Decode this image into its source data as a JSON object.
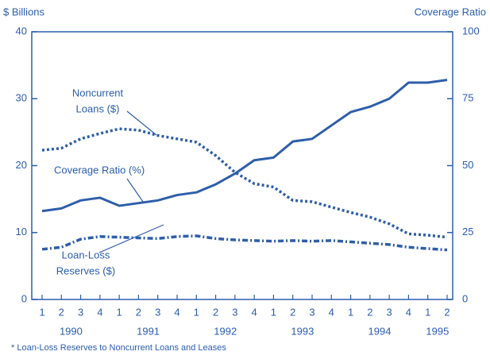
{
  "chart_data": {
    "type": "line",
    "y_axis_label": "$ Billions",
    "y2_axis_label": "Coverage Ratio",
    "footnote": "* Loan-Loss Reserves to Noncurrent Loans and Leases",
    "categories": [
      "1",
      "2",
      "3",
      "4",
      "1",
      "2",
      "3",
      "4",
      "1",
      "2",
      "3",
      "4",
      "1",
      "2",
      "3",
      "4",
      "1",
      "2",
      "3",
      "4",
      "1",
      "2"
    ],
    "years": [
      "1990",
      "1991",
      "1992",
      "1993",
      "1994",
      "1995"
    ],
    "ylim": [
      0,
      40
    ],
    "yticks": [
      0,
      10,
      20,
      30,
      40
    ],
    "y2lim": [
      0,
      100
    ],
    "y2ticks": [
      0,
      25,
      50,
      75,
      100
    ],
    "series": [
      {
        "label_lines": [
          "Coverage Ratio (%)"
        ],
        "axis": "y2",
        "style": "solid",
        "color": "#2e5eaa",
        "values": [
          33,
          34,
          37,
          38,
          35,
          36,
          37,
          39,
          40,
          43,
          47,
          52,
          53,
          59,
          60,
          65,
          70,
          72,
          75,
          81,
          81,
          82
        ]
      },
      {
        "label_lines": [
          "Noncurrent",
          "Loans ($)"
        ],
        "axis": "y",
        "style": "dotted",
        "color": "#2e5eaa",
        "values": [
          22.3,
          22.6,
          24,
          24.8,
          25.5,
          25.3,
          24.5,
          24,
          23.5,
          21.5,
          19,
          17.3,
          16.8,
          14.8,
          14.6,
          13.8,
          13,
          12.3,
          11.3,
          9.8,
          9.6,
          9.3
        ]
      },
      {
        "label_lines": [
          "Loan-Loss",
          "Reserves ($)"
        ],
        "axis": "y",
        "style": "dashdot",
        "color": "#2e5eaa",
        "values": [
          7.5,
          7.8,
          9,
          9.4,
          9.3,
          9.2,
          9.1,
          9.4,
          9.5,
          9.1,
          8.9,
          8.8,
          8.7,
          8.8,
          8.7,
          8.8,
          8.6,
          8.4,
          8.2,
          7.8,
          7.6,
          7.4
        ]
      }
    ]
  }
}
